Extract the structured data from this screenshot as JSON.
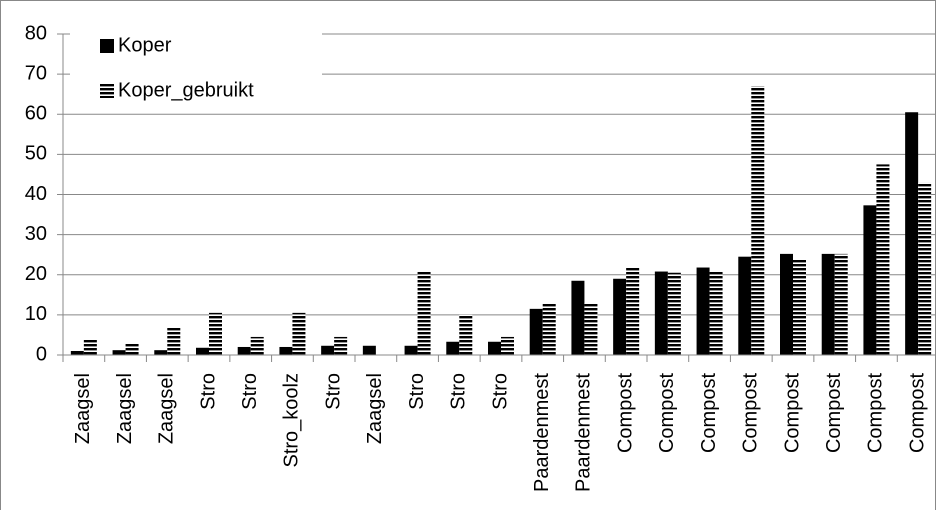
{
  "chart_data": {
    "type": "bar",
    "categories": [
      "Zaagsel",
      "Zaagsel",
      "Zaagsel",
      "Stro",
      "Stro",
      "Stro_koolz",
      "Stro",
      "Zaagsel",
      "Stro",
      "Stro",
      "Stro",
      "Paardenmest",
      "Paardenmest",
      "Compost",
      "Compost",
      "Compost",
      "Compost",
      "Compost",
      "Compost",
      "Compost",
      "Compost"
    ],
    "series": [
      {
        "name": "Koper",
        "color": "#000000",
        "values": [
          1.0,
          1.2,
          1.2,
          1.8,
          2.0,
          2.0,
          2.3,
          2.3,
          2.3,
          3.3,
          3.3,
          11.5,
          18.5,
          19.0,
          20.8,
          21.8,
          24.5,
          25.2,
          25.2,
          37.3,
          60.5
        ]
      },
      {
        "name": "Koper_gebruikt",
        "color": "#000000",
        "values": [
          4.0,
          3.0,
          7.0,
          10.5,
          4.5,
          10.5,
          4.5,
          null,
          21.0,
          10.0,
          4.5,
          12.8,
          13.0,
          22.0,
          20.5,
          21.0,
          67.0,
          24.0,
          25.2,
          47.5,
          43.0
        ]
      }
    ],
    "ylim": [
      0,
      80
    ],
    "yticks": [
      0,
      10,
      20,
      30,
      40,
      50,
      60,
      70,
      80
    ],
    "grid": true,
    "legend": "top-left"
  }
}
